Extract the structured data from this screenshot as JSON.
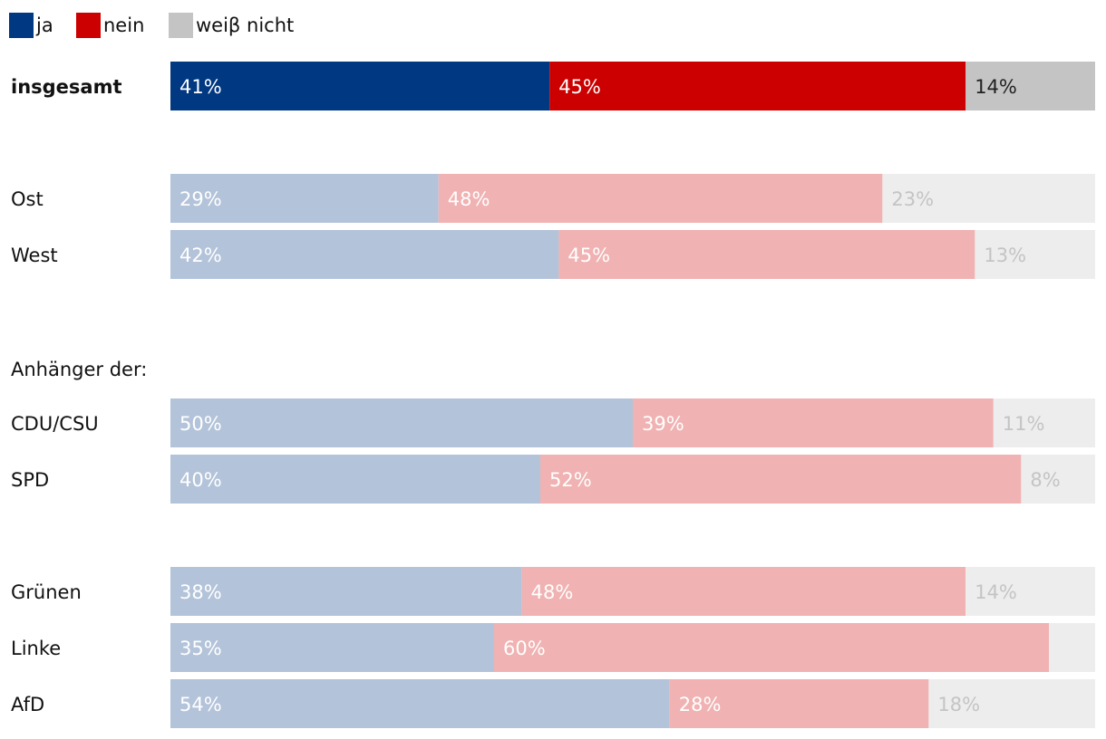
{
  "colors": {
    "ja": "#003882",
    "nein": "#cc0000",
    "weiss_nicht": "#c4c4c4",
    "ja_light": "#b3c3d9",
    "nein_light": "#f0b2b2",
    "weiss_nicht_light": "#ededed",
    "label_on_dark": "#ffffff",
    "label_dark": "#222222",
    "label_on_light_gray": "#c4c4c4"
  },
  "legend": [
    {
      "key": "ja",
      "label": "ja"
    },
    {
      "key": "nein",
      "label": "nein"
    },
    {
      "key": "weiss_nicht",
      "label": "weiβ nicht"
    }
  ],
  "chart_data": {
    "type": "bar",
    "orientation": "horizontal",
    "stacked": true,
    "normalized": true,
    "title": "",
    "xlabel": "",
    "ylabel": "",
    "xlim": [
      0,
      100
    ],
    "series_names": [
      "ja",
      "nein",
      "weiβ nicht"
    ],
    "section_labels": [
      "Anhänger der:"
    ],
    "rows": [
      {
        "label": "insgesamt",
        "highlight": true,
        "values": [
          41,
          45,
          14
        ],
        "labels": [
          "41%",
          "45%",
          "14%"
        ]
      },
      {
        "label": "Ost",
        "highlight": false,
        "values": [
          29,
          48,
          23
        ],
        "labels": [
          "29%",
          "48%",
          "23%"
        ]
      },
      {
        "label": "West",
        "highlight": false,
        "values": [
          42,
          45,
          13
        ],
        "labels": [
          "42%",
          "45%",
          "13%"
        ]
      },
      {
        "label": "CDU/CSU",
        "highlight": false,
        "values": [
          50,
          39,
          11
        ],
        "labels": [
          "50%",
          "39%",
          "11%"
        ]
      },
      {
        "label": "SPD",
        "highlight": false,
        "values": [
          40,
          52,
          8
        ],
        "labels": [
          "40%",
          "52%",
          "8%"
        ]
      },
      {
        "label": "Grünen",
        "highlight": false,
        "values": [
          38,
          48,
          14
        ],
        "labels": [
          "38%",
          "48%",
          "14%"
        ]
      },
      {
        "label": "Linke",
        "highlight": false,
        "values": [
          35,
          60,
          5
        ],
        "labels": [
          "35%",
          "60%",
          ""
        ]
      },
      {
        "label": "AfD",
        "highlight": false,
        "values": [
          54,
          28,
          18
        ],
        "labels": [
          "54%",
          "28%",
          "18%"
        ]
      }
    ]
  }
}
